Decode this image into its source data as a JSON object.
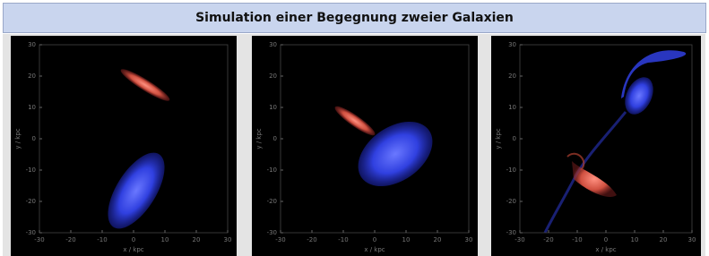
{
  "title": "Simulation einer Begegnung zweier Galaxien",
  "panels": [
    {
      "xticks": [
        -30,
        -20,
        -10,
        0,
        10,
        20,
        30
      ],
      "yticks": [
        30,
        20,
        10,
        0,
        -10,
        -20,
        -30
      ],
      "xlabel": "x / kpc",
      "ylabel": "y / kpc"
    },
    {
      "xticks": [
        -30,
        -20,
        -10,
        0,
        10,
        20,
        30
      ],
      "yticks": [
        30,
        20,
        10,
        0,
        -10,
        -20,
        -30
      ],
      "xlabel": "x / kpc",
      "ylabel": "y / kpc"
    },
    {
      "xticks": [
        -30,
        -20,
        -10,
        0,
        10,
        20,
        30
      ],
      "yticks": [
        30,
        20,
        10,
        0,
        -10,
        -20,
        -30
      ],
      "xlabel": "x / kpc",
      "ylabel": "y / kpc"
    }
  ]
}
